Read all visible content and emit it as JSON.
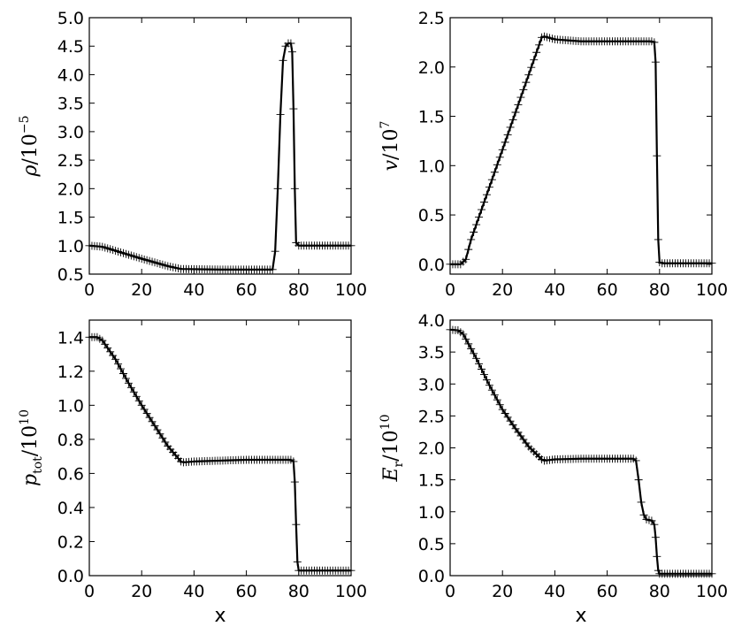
{
  "chart_data": [
    {
      "type": "line",
      "title": "",
      "xlabel": "",
      "ylabel": {
        "sym": "ρ",
        "rest": "/10",
        "sup": "−5"
      },
      "xlim": [
        0,
        100
      ],
      "ylim": [
        0.5,
        5.0
      ],
      "xticks": [
        "0",
        "20",
        "40",
        "60",
        "80",
        "100"
      ],
      "yticks": [
        "0.5",
        "1.0",
        "1.5",
        "2.0",
        "2.5",
        "3.0",
        "3.5",
        "4.0",
        "4.5",
        "5.0"
      ],
      "grid": false,
      "series": [
        {
          "color": "#000000",
          "marker": "plus",
          "x": [
            0,
            5,
            10,
            20,
            30,
            35,
            50,
            65,
            70,
            71,
            72,
            73,
            74,
            75,
            76,
            77,
            77.5,
            78,
            78.5,
            79,
            80,
            90,
            100
          ],
          "y": [
            1.0,
            0.98,
            0.91,
            0.77,
            0.64,
            0.59,
            0.58,
            0.58,
            0.58,
            0.9,
            2.0,
            3.3,
            4.25,
            4.5,
            4.55,
            4.55,
            4.4,
            3.4,
            2.0,
            1.05,
            1.0,
            1.0,
            1.0
          ]
        }
      ]
    },
    {
      "type": "line",
      "title": "",
      "xlabel": "",
      "ylabel": {
        "sym": "v",
        "rest": "/10",
        "sup": "7"
      },
      "xlim": [
        0,
        100
      ],
      "ylim": [
        -0.1,
        2.5
      ],
      "xticks": [
        "0",
        "20",
        "40",
        "60",
        "80",
        "100"
      ],
      "yticks": [
        "0.0",
        "0.5",
        "1.0",
        "1.5",
        "2.0",
        "2.5"
      ],
      "grid": false,
      "series": [
        {
          "color": "#000000",
          "marker": "plus",
          "x": [
            0,
            4,
            6,
            8,
            35,
            36,
            40,
            50,
            60,
            70,
            77,
            78,
            78.5,
            79,
            79.5,
            80,
            81,
            90,
            100
          ],
          "y": [
            0.0,
            0.0,
            0.05,
            0.25,
            2.3,
            2.31,
            2.28,
            2.26,
            2.26,
            2.26,
            2.26,
            2.25,
            2.05,
            1.1,
            0.25,
            0.02,
            0.01,
            0.01,
            0.01
          ]
        }
      ]
    },
    {
      "type": "line",
      "title": "",
      "xlabel": "x",
      "ylabel": {
        "sym": "p",
        "sub": "tot",
        "rest": "/10",
        "sup": "10"
      },
      "xlim": [
        0,
        100
      ],
      "ylim": [
        0.0,
        1.5
      ],
      "xticks": [
        "0",
        "20",
        "40",
        "60",
        "80",
        "100"
      ],
      "yticks": [
        "0.0",
        "0.2",
        "0.4",
        "0.6",
        "0.8",
        "1.0",
        "1.2",
        "1.4"
      ],
      "grid": false,
      "series": [
        {
          "color": "#000000",
          "marker": "plus",
          "x": [
            0,
            3,
            5,
            10,
            15,
            20,
            25,
            30,
            35,
            36,
            40,
            50,
            60,
            70,
            77,
            78,
            78.5,
            79,
            79.5,
            80,
            81,
            90,
            100
          ],
          "y": [
            1.4,
            1.4,
            1.38,
            1.27,
            1.13,
            1.0,
            0.88,
            0.76,
            0.67,
            0.665,
            0.67,
            0.675,
            0.68,
            0.68,
            0.68,
            0.67,
            0.55,
            0.3,
            0.08,
            0.03,
            0.03,
            0.03,
            0.03
          ]
        }
      ]
    },
    {
      "type": "line",
      "title": "",
      "xlabel": "x",
      "ylabel": {
        "sym": "E",
        "sub": "r",
        "rest": "/10",
        "sup": "10"
      },
      "xlim": [
        0,
        100
      ],
      "ylim": [
        0.0,
        4.0
      ],
      "xticks": [
        "0",
        "20",
        "40",
        "60",
        "80",
        "100"
      ],
      "yticks": [
        "0.0",
        "0.5",
        "1.0",
        "1.5",
        "2.0",
        "2.5",
        "3.0",
        "3.5",
        "4.0"
      ],
      "grid": false,
      "series": [
        {
          "color": "#000000",
          "marker": "plus",
          "x": [
            0,
            3,
            5,
            10,
            15,
            20,
            25,
            30,
            35,
            36,
            40,
            50,
            60,
            70,
            71,
            72,
            73,
            74,
            75,
            77,
            78,
            78.5,
            79,
            79.5,
            80,
            81,
            90,
            100
          ],
          "y": [
            3.85,
            3.84,
            3.78,
            3.4,
            2.98,
            2.6,
            2.3,
            2.02,
            1.82,
            1.8,
            1.82,
            1.83,
            1.83,
            1.83,
            1.8,
            1.5,
            1.15,
            0.95,
            0.88,
            0.86,
            0.8,
            0.6,
            0.3,
            0.08,
            0.03,
            0.03,
            0.03,
            0.03
          ]
        }
      ]
    }
  ]
}
